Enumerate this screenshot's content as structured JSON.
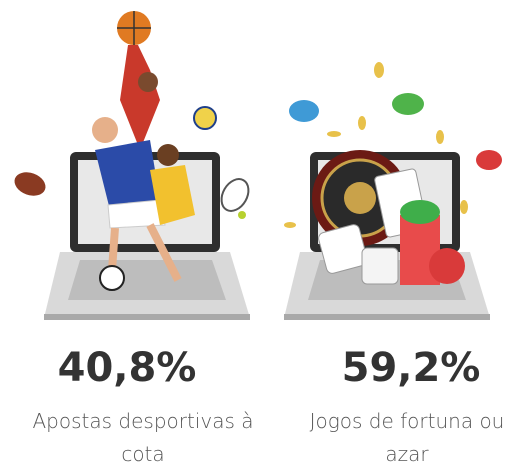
{
  "items": [
    {
      "value": "40,8%",
      "label": "Apostas desportivas à cota"
    },
    {
      "value": "59,2%",
      "label": "Jogos de fortuna ou azar"
    }
  ]
}
